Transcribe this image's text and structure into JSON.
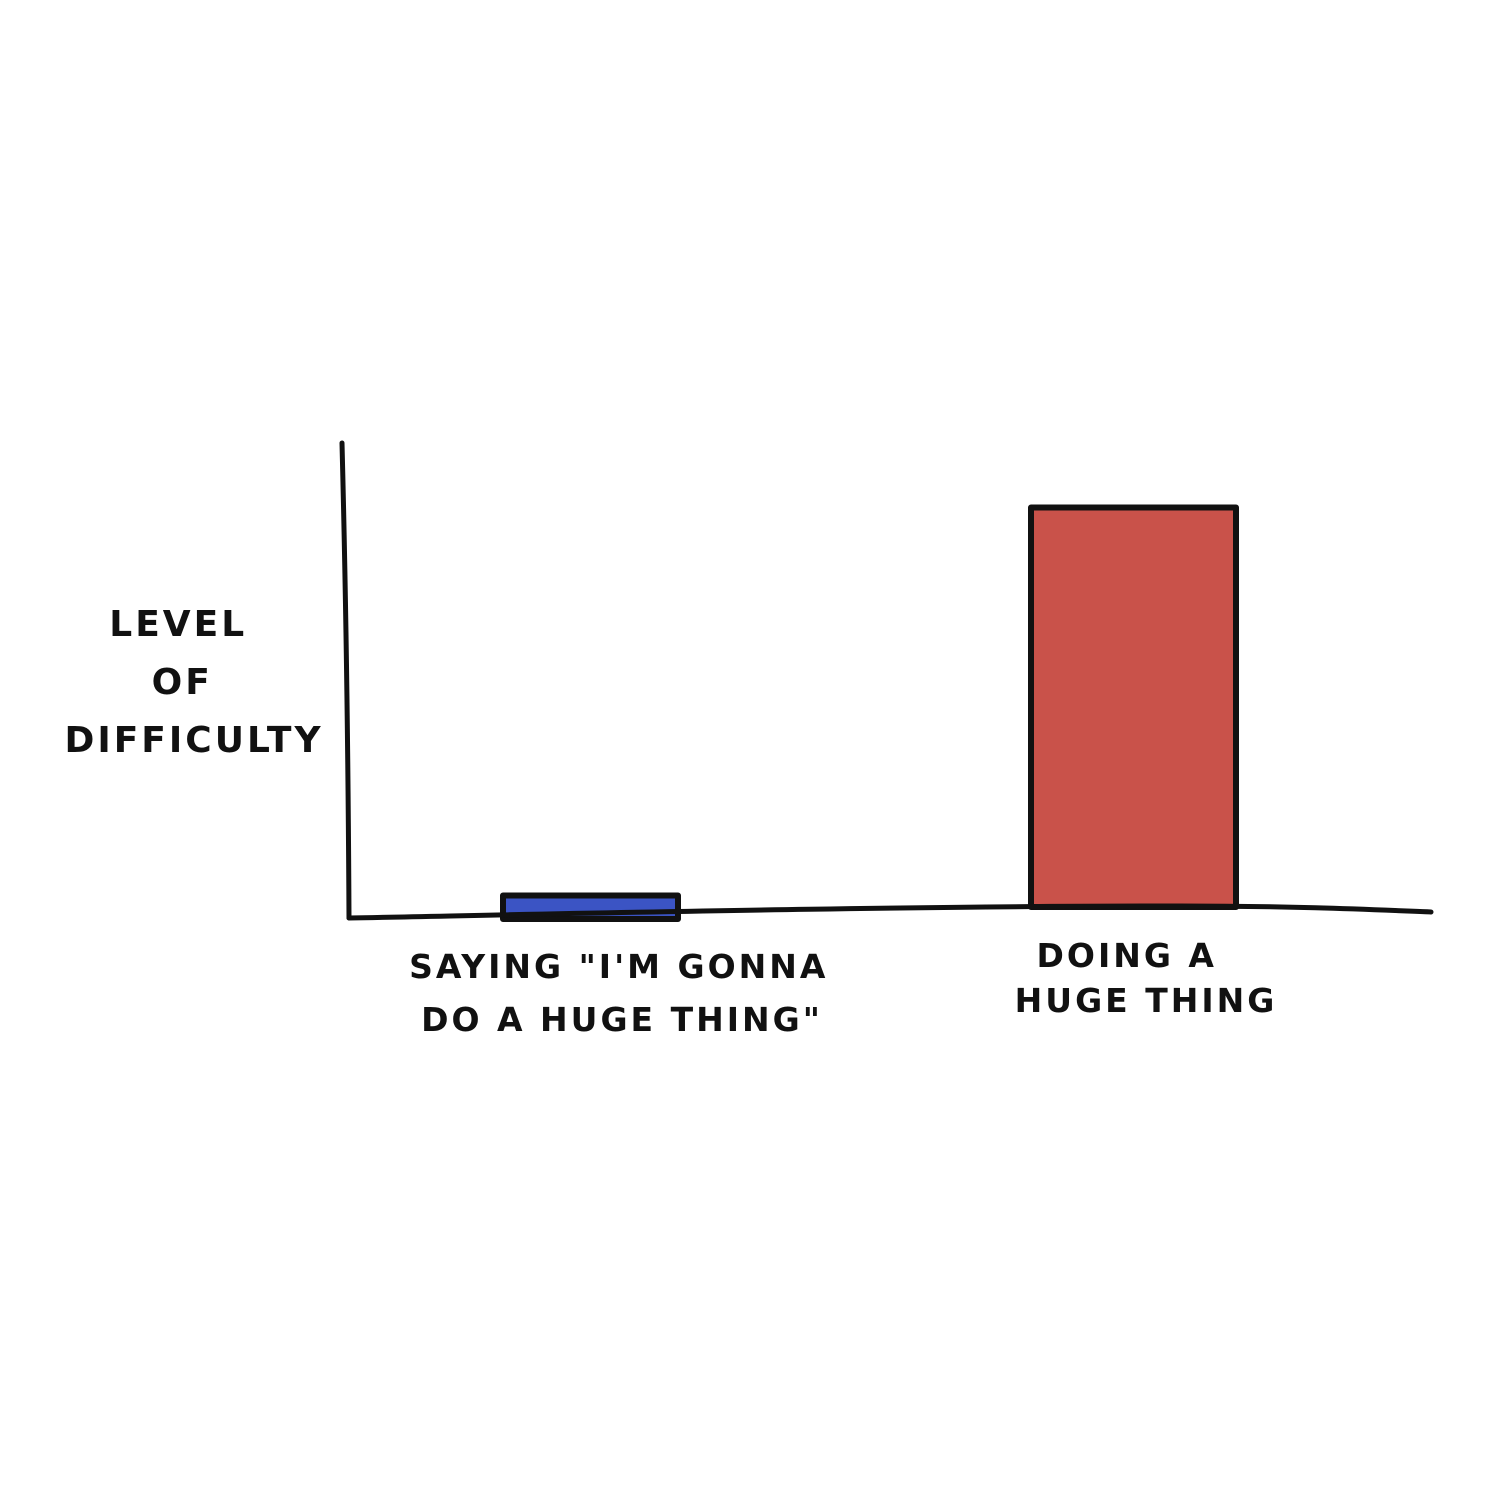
{
  "chart_data": {
    "type": "bar",
    "title": "",
    "xlabel": "",
    "ylabel_lines": [
      "LEVEL",
      "OF",
      "DIFFICULTY"
    ],
    "categories": [
      [
        "SAYING \"I'M GONNA",
        "DO A HUGE THING\""
      ],
      [
        "DOING A",
        "HUGE THING"
      ]
    ],
    "values": [
      5,
      85
    ],
    "ylim": [
      0,
      100
    ],
    "bar_colors": [
      "#3B54C4",
      "#C9524A"
    ],
    "outline_color": "#111111",
    "grid": false,
    "legend": "none"
  }
}
